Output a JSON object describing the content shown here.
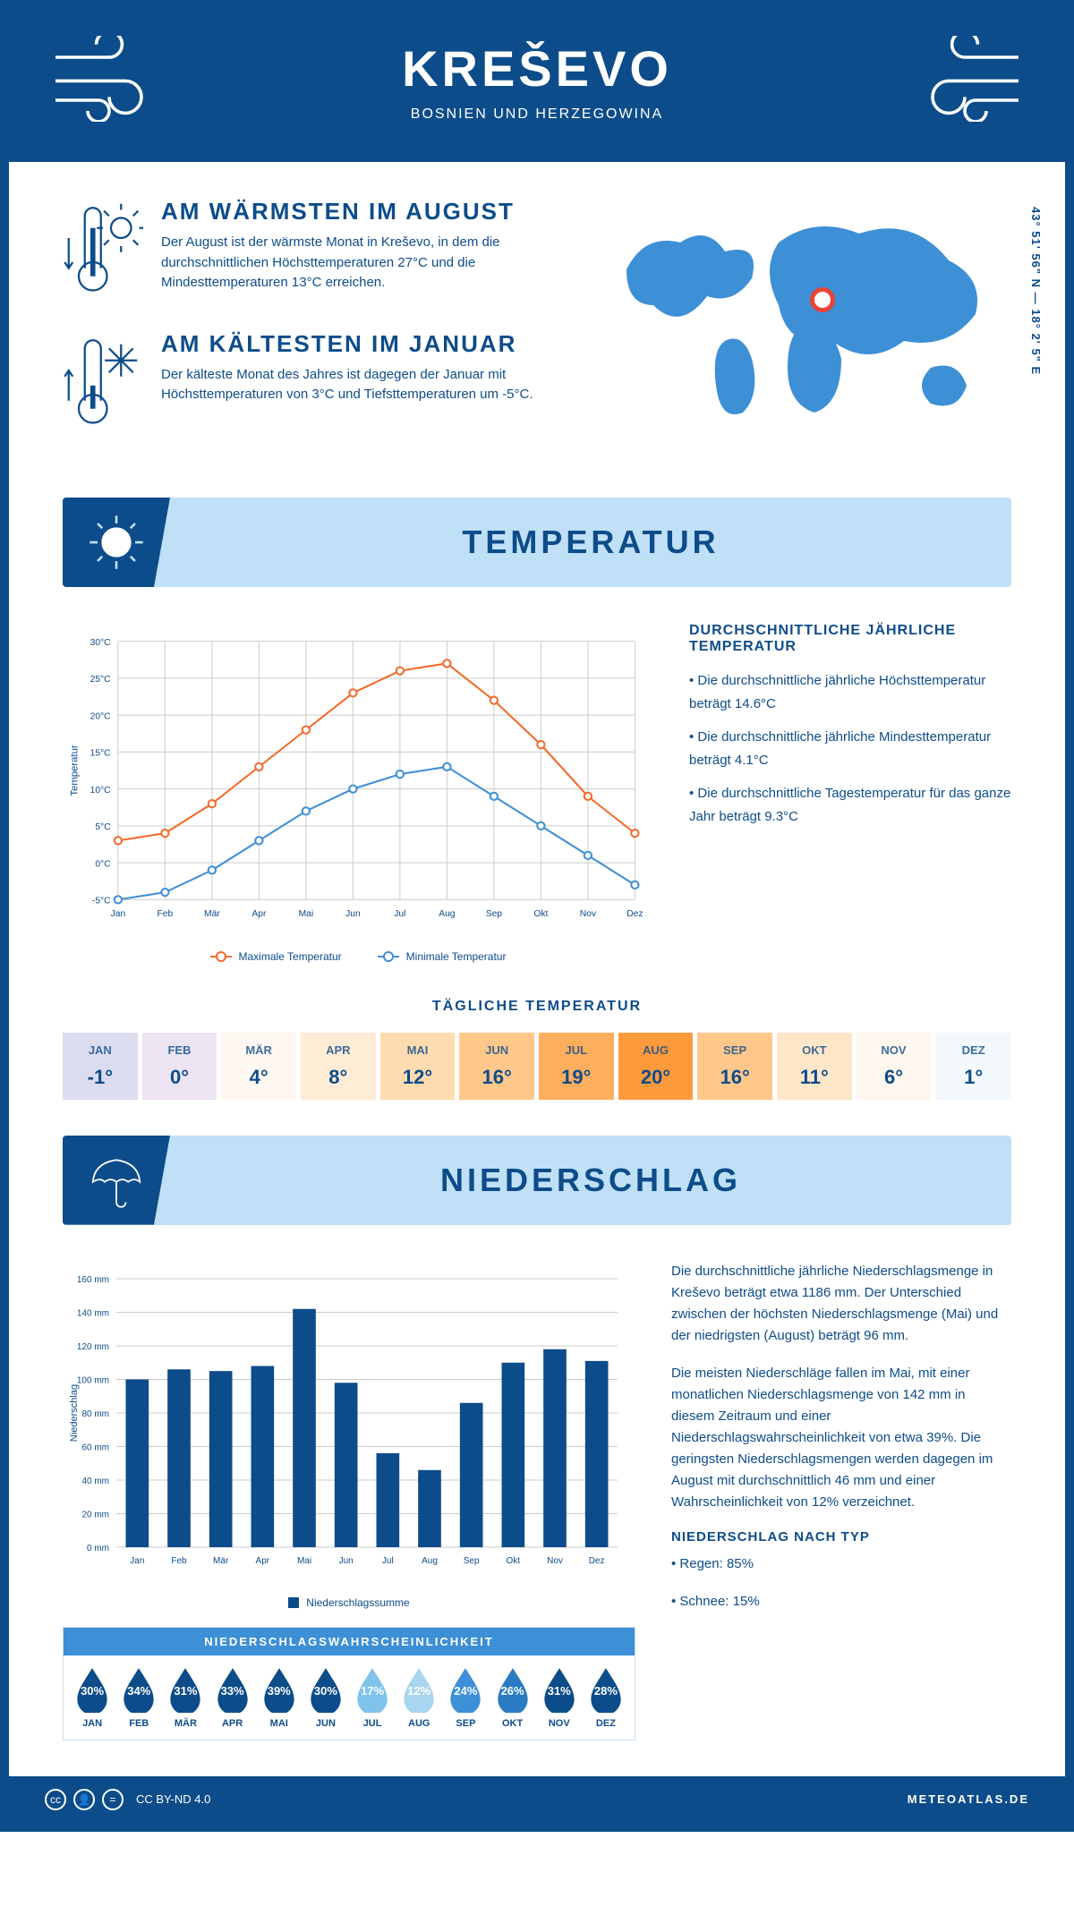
{
  "header": {
    "city": "KREŠEVO",
    "country": "BOSNIEN UND HERZEGOWINA",
    "coords": "43° 51' 56\" N — 18° 2' 5\" E"
  },
  "colors": {
    "primary": "#0d4c8a",
    "accent_blue": "#3d8fd6",
    "light_blue": "#bfe0f7",
    "orange": "#f26a2a",
    "line_blue": "#3d8fd6"
  },
  "warm": {
    "title": "AM WÄRMSTEN IM AUGUST",
    "text": "Der August ist der wärmste Monat in Kreševo, in dem die durchschnittlichen Höchsttemperaturen 27°C und die Mindesttemperaturen 13°C erreichen."
  },
  "cold": {
    "title": "AM KÄLTESTEN IM JANUAR",
    "text": "Der kälteste Monat des Jahres ist dagegen der Januar mit Höchsttemperaturen von 3°C und Tiefsttemperaturen um -5°C."
  },
  "map_marker": {
    "left_pct": 51,
    "top_pct": 34
  },
  "sections": {
    "temperature": "TEMPERATUR",
    "precipitation": "NIEDERSCHLAG"
  },
  "temp_chart": {
    "type": "line",
    "months": [
      "Jan",
      "Feb",
      "Mär",
      "Apr",
      "Mai",
      "Jun",
      "Jul",
      "Aug",
      "Sep",
      "Okt",
      "Nov",
      "Dez"
    ],
    "max": [
      3,
      4,
      8,
      13,
      18,
      23,
      26,
      27,
      22,
      16,
      9,
      4
    ],
    "min": [
      -5,
      -4,
      -1,
      3,
      7,
      10,
      12,
      13,
      9,
      5,
      1,
      -3
    ],
    "yticks": [
      -5,
      0,
      5,
      10,
      15,
      20,
      25,
      30
    ],
    "ylim": [
      -5,
      30
    ],
    "ylabel": "Temperatur",
    "max_color": "#f26a2a",
    "min_color": "#3d8fd6",
    "grid_color": "#cccccc",
    "legend_max": "Maximale Temperatur",
    "legend_min": "Minimale Temperatur",
    "line_width": 2,
    "marker_size": 4
  },
  "temp_stats": {
    "title": "DURCHSCHNITTLICHE JÄHRLICHE TEMPERATUR",
    "l1": "• Die durchschnittliche jährliche Höchsttemperatur beträgt 14.6°C",
    "l2": "• Die durchschnittliche jährliche Mindesttemperatur beträgt 4.1°C",
    "l3": "• Die durchschnittliche Tagestemperatur für das ganze Jahr beträgt 9.3°C"
  },
  "daily": {
    "title": "TÄGLICHE TEMPERATUR",
    "months": [
      "JAN",
      "FEB",
      "MÄR",
      "APR",
      "MAI",
      "JUN",
      "JUL",
      "AUG",
      "SEP",
      "OKT",
      "NOV",
      "DEZ"
    ],
    "values": [
      "-1°",
      "0°",
      "4°",
      "8°",
      "12°",
      "16°",
      "19°",
      "20°",
      "16°",
      "11°",
      "6°",
      "1°"
    ],
    "colors": [
      "#dcdcf0",
      "#ece4f2",
      "#fff8f2",
      "#ffecd6",
      "#ffdcb0",
      "#ffc88a",
      "#ffae5e",
      "#ff9a3c",
      "#ffc88a",
      "#ffe6c8",
      "#fff6ee",
      "#f2f8fc"
    ]
  },
  "precip_chart": {
    "type": "bar",
    "months": [
      "Jan",
      "Feb",
      "Mär",
      "Apr",
      "Mai",
      "Jun",
      "Jul",
      "Aug",
      "Sep",
      "Okt",
      "Nov",
      "Dez"
    ],
    "values": [
      100,
      106,
      105,
      108,
      142,
      98,
      56,
      46,
      86,
      110,
      118,
      111
    ],
    "yticks": [
      0,
      20,
      40,
      60,
      80,
      100,
      120,
      140,
      160
    ],
    "ylim": [
      0,
      160
    ],
    "ylabel": "Niederschlag",
    "bar_color": "#0d4c8a",
    "bar_width": 0.55,
    "legend": "Niederschlagssumme",
    "grid_color": "#cccccc"
  },
  "precip_text": {
    "p1": "Die durchschnittliche jährliche Niederschlagsmenge in Kreševo beträgt etwa 1186 mm. Der Unterschied zwischen der höchsten Niederschlagsmenge (Mai) und der niedrigsten (August) beträgt 96 mm.",
    "p2": "Die meisten Niederschläge fallen im Mai, mit einer monatlichen Niederschlagsmenge von 142 mm in diesem Zeitraum und einer Niederschlagswahrscheinlichkeit von etwa 39%. Die geringsten Niederschlagsmengen werden dagegen im August mit durchschnittlich 46 mm und einer Wahrscheinlichkeit von 12% verzeichnet.",
    "type_title": "NIEDERSCHLAG NACH TYP",
    "type1": "• Regen: 85%",
    "type2": "• Schnee: 15%"
  },
  "prob": {
    "title": "NIEDERSCHLAGSWAHRSCHEINLICHKEIT",
    "months": [
      "JAN",
      "FEB",
      "MÄR",
      "APR",
      "MAI",
      "JUN",
      "JUL",
      "AUG",
      "SEP",
      "OKT",
      "NOV",
      "DEZ"
    ],
    "pct": [
      "30%",
      "34%",
      "31%",
      "33%",
      "39%",
      "30%",
      "17%",
      "12%",
      "24%",
      "26%",
      "31%",
      "28%"
    ],
    "colors": [
      "#0d4c8a",
      "#0d4c8a",
      "#0d4c8a",
      "#0d4c8a",
      "#0d4c8a",
      "#0d4c8a",
      "#7fc3ec",
      "#a8d6f0",
      "#3d8fd6",
      "#2a7bc4",
      "#0d4c8a",
      "#0d4c8a"
    ]
  },
  "footer": {
    "license": "CC BY-ND 4.0",
    "brand": "METEOATLAS.DE"
  }
}
